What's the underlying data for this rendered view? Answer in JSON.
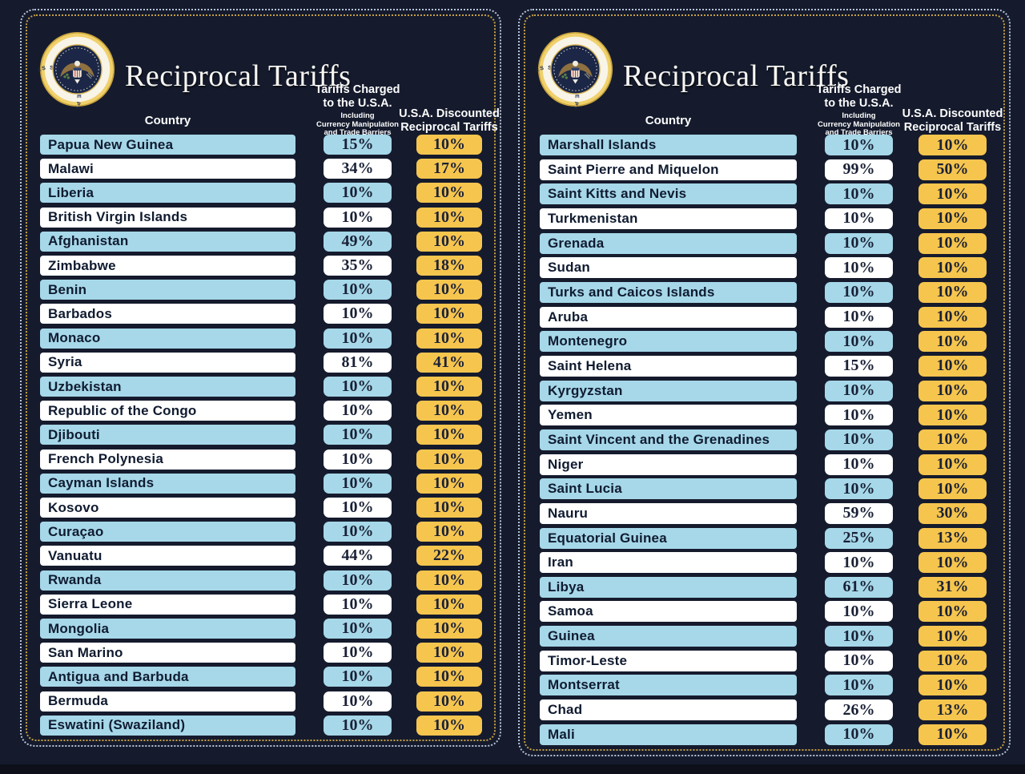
{
  "seal_text": "SEAL OF THE PRESIDENT OF THE UNITED STATES",
  "colors": {
    "background": "#151b2d",
    "row_blue": "#a6d8e9",
    "row_white": "#ffffff",
    "accent_gold": "#f6c54e",
    "border_gold": "#c79f42",
    "border_light": "#b7c3d8",
    "text_dark": "#101b30"
  },
  "panels": [
    {
      "title": "Reciprocal Tariffs",
      "columns": {
        "country": "Country",
        "charged_line1": "Tariffs Charged",
        "charged_line2": "to the U.S.A.",
        "charged_sub1": "Including",
        "charged_sub2": "Currency Manipulation",
        "charged_sub3": "and Trade Barriers",
        "discounted_line1": "U.S.A. Discounted",
        "discounted_line2": "Reciprocal Tariffs"
      }
    },
    {
      "title": "Reciprocal Tariffs",
      "columns": {
        "country": "Country",
        "charged_line1": "Tariffs Charged",
        "charged_line2": "to the U.S.A.",
        "charged_sub1": "Including",
        "charged_sub2": "Currency Manipulation",
        "charged_sub3": "and Trade Barriers",
        "discounted_line1": "U.S.A. Discounted",
        "discounted_line2": "Reciprocal Tariffs"
      }
    }
  ],
  "chart_data": [
    {
      "type": "table",
      "title": "Reciprocal Tariffs",
      "columns": [
        "Country",
        "Tariffs Charged to the U.S.A. Including Currency Manipulation and Trade Barriers",
        "U.S.A. Discounted Reciprocal Tariffs"
      ],
      "rows": [
        [
          "Papua New Guinea",
          "15%",
          "10%"
        ],
        [
          "Malawi",
          "34%",
          "17%"
        ],
        [
          "Liberia",
          "10%",
          "10%"
        ],
        [
          "British Virgin Islands",
          "10%",
          "10%"
        ],
        [
          "Afghanistan",
          "49%",
          "10%"
        ],
        [
          "Zimbabwe",
          "35%",
          "18%"
        ],
        [
          "Benin",
          "10%",
          "10%"
        ],
        [
          "Barbados",
          "10%",
          "10%"
        ],
        [
          "Monaco",
          "10%",
          "10%"
        ],
        [
          "Syria",
          "81%",
          "41%"
        ],
        [
          "Uzbekistan",
          "10%",
          "10%"
        ],
        [
          "Republic of the Congo",
          "10%",
          "10%"
        ],
        [
          "Djibouti",
          "10%",
          "10%"
        ],
        [
          "French Polynesia",
          "10%",
          "10%"
        ],
        [
          "Cayman Islands",
          "10%",
          "10%"
        ],
        [
          "Kosovo",
          "10%",
          "10%"
        ],
        [
          "Curaçao",
          "10%",
          "10%"
        ],
        [
          "Vanuatu",
          "44%",
          "22%"
        ],
        [
          "Rwanda",
          "10%",
          "10%"
        ],
        [
          "Sierra Leone",
          "10%",
          "10%"
        ],
        [
          "Mongolia",
          "10%",
          "10%"
        ],
        [
          "San Marino",
          "10%",
          "10%"
        ],
        [
          "Antigua and Barbuda",
          "10%",
          "10%"
        ],
        [
          "Bermuda",
          "10%",
          "10%"
        ],
        [
          "Eswatini (Swaziland)",
          "10%",
          "10%"
        ]
      ]
    },
    {
      "type": "table",
      "title": "Reciprocal Tariffs",
      "columns": [
        "Country",
        "Tariffs Charged to the U.S.A. Including Currency Manipulation and Trade Barriers",
        "U.S.A. Discounted Reciprocal Tariffs"
      ],
      "rows": [
        [
          "Marshall Islands",
          "10%",
          "10%"
        ],
        [
          "Saint Pierre and Miquelon",
          "99%",
          "50%"
        ],
        [
          "Saint Kitts and Nevis",
          "10%",
          "10%"
        ],
        [
          "Turkmenistan",
          "10%",
          "10%"
        ],
        [
          "Grenada",
          "10%",
          "10%"
        ],
        [
          "Sudan",
          "10%",
          "10%"
        ],
        [
          "Turks and Caicos Islands",
          "10%",
          "10%"
        ],
        [
          "Aruba",
          "10%",
          "10%"
        ],
        [
          "Montenegro",
          "10%",
          "10%"
        ],
        [
          "Saint Helena",
          "15%",
          "10%"
        ],
        [
          "Kyrgyzstan",
          "10%",
          "10%"
        ],
        [
          "Yemen",
          "10%",
          "10%"
        ],
        [
          "Saint Vincent and the Grenadines",
          "10%",
          "10%"
        ],
        [
          "Niger",
          "10%",
          "10%"
        ],
        [
          "Saint Lucia",
          "10%",
          "10%"
        ],
        [
          "Nauru",
          "59%",
          "30%"
        ],
        [
          "Equatorial Guinea",
          "25%",
          "13%"
        ],
        [
          "Iran",
          "10%",
          "10%"
        ],
        [
          "Libya",
          "61%",
          "31%"
        ],
        [
          "Samoa",
          "10%",
          "10%"
        ],
        [
          "Guinea",
          "10%",
          "10%"
        ],
        [
          "Timor-Leste",
          "10%",
          "10%"
        ],
        [
          "Montserrat",
          "10%",
          "10%"
        ],
        [
          "Chad",
          "26%",
          "13%"
        ],
        [
          "Mali",
          "10%",
          "10%"
        ]
      ]
    }
  ]
}
